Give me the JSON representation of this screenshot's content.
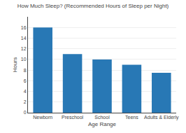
{
  "chart_data": {
    "type": "bar",
    "title": "How Much Sleep? (Recommended Hours of Sleep per Night)",
    "categories": [
      "Newborn",
      "Preschool",
      "School",
      "Teens",
      "Adults & Elderly"
    ],
    "values": [
      16,
      11,
      10,
      9,
      7.5
    ],
    "color": "#2878b5",
    "xlabel": "Age Range",
    "ylabel": "Hours",
    "ylim": [
      0,
      18
    ],
    "yticks": [
      0,
      2,
      4,
      6,
      8,
      10,
      12,
      14,
      16
    ],
    "grid": true
  }
}
